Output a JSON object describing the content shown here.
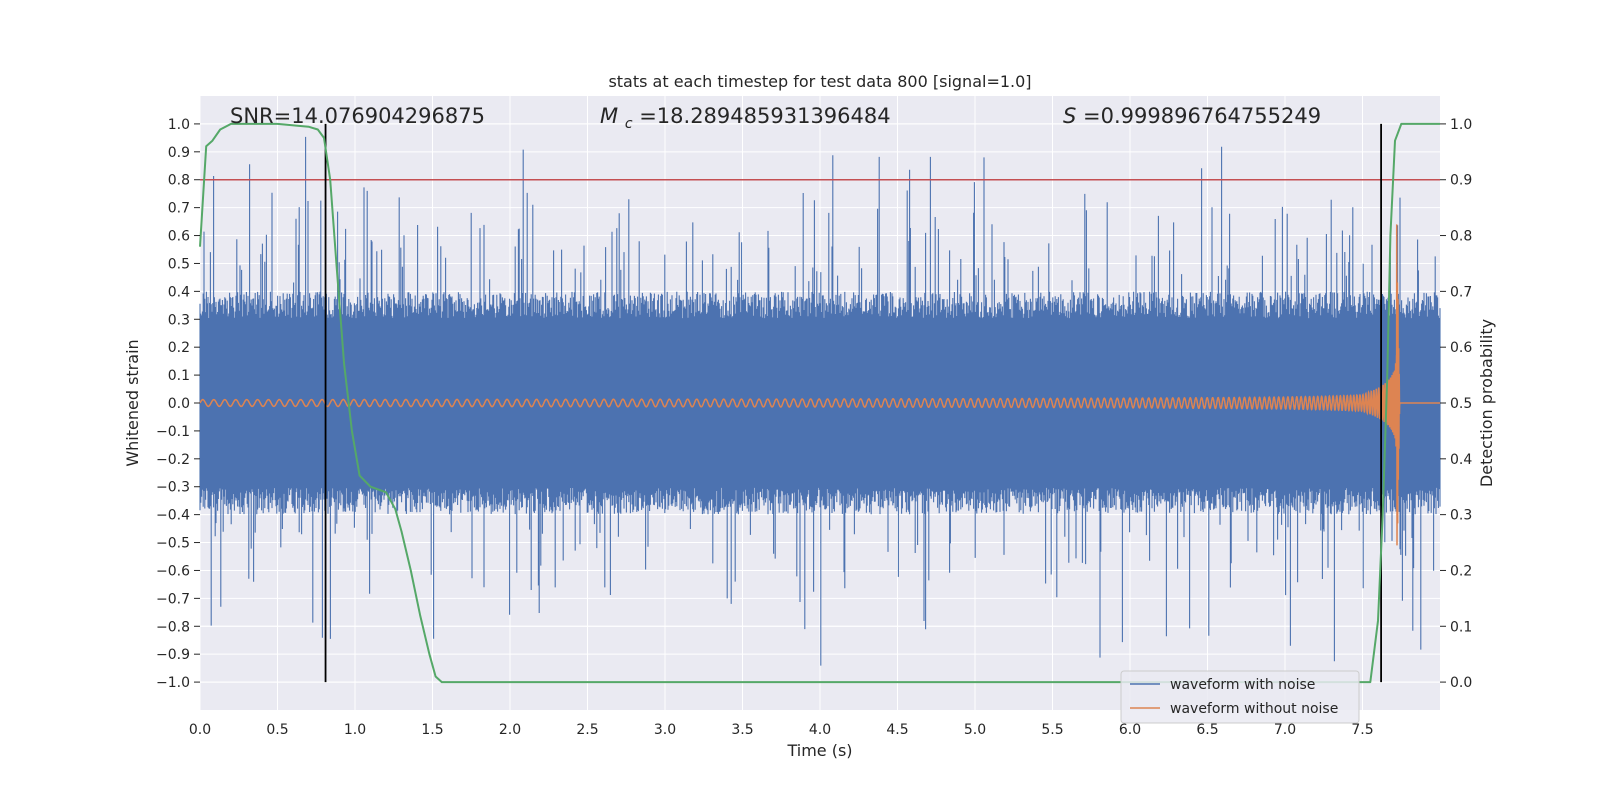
{
  "chart_data": {
    "type": "line",
    "title": "stats at each timestep for test data 800 [signal=1.0]",
    "xlabel": "Time (s)",
    "ylabel": "Whitened strain",
    "y2label": "Detection probability",
    "xlim": [
      0.0,
      8.0
    ],
    "ylim": [
      -1.1,
      1.1
    ],
    "y2lim": [
      -0.05,
      1.05
    ],
    "xticks": [
      0.0,
      0.5,
      1.0,
      1.5,
      2.0,
      2.5,
      3.0,
      3.5,
      4.0,
      4.5,
      5.0,
      5.5,
      6.0,
      6.5,
      7.0,
      7.5
    ],
    "xtick_labels": [
      "0.0",
      "0.5",
      "1.0",
      "1.5",
      "2.0",
      "2.5",
      "3.0",
      "3.5",
      "4.0",
      "4.5",
      "5.0",
      "5.5",
      "6.0",
      "6.5",
      "7.0",
      "7.5"
    ],
    "yticks": [
      1.0,
      0.9,
      0.8,
      0.7,
      0.6,
      0.5,
      0.4,
      0.3,
      0.2,
      0.1,
      0.0,
      -0.1,
      -0.2,
      -0.3,
      -0.4,
      -0.5,
      -0.6,
      -0.7,
      -0.8,
      -0.9,
      -1.0
    ],
    "ytick_labels": [
      "1.0",
      "0.9",
      "0.8",
      "0.7",
      "0.6",
      "0.5",
      "0.4",
      "0.3",
      "0.2",
      "0.1",
      "0.0",
      "−0.1",
      "−0.2",
      "−0.3",
      "−0.4",
      "−0.5",
      "−0.6",
      "−0.7",
      "−0.8",
      "−0.9",
      "−1.0"
    ],
    "y2ticks": [
      1.0,
      0.9,
      0.8,
      0.7,
      0.6,
      0.5,
      0.4,
      0.3,
      0.2,
      0.1,
      0.0
    ],
    "y2tick_labels": [
      "1.0",
      "0.9",
      "0.8",
      "0.7",
      "0.6",
      "0.5",
      "0.4",
      "0.3",
      "0.2",
      "0.1",
      "0.0"
    ],
    "annotations": {
      "snr": "SNR=14.076904296875",
      "mc_symbol": "M",
      "mc_sub": "c",
      "mc_value": "=18.289485931396484",
      "s_symbol": "S",
      "s_value": "=0.999896764755249"
    },
    "threshold_line": {
      "value": 0.9,
      "axis": "y2",
      "color": "#c44e52"
    },
    "vertical_lines": [
      0.81,
      7.62
    ],
    "noise_series": {
      "name": "waveform with noise",
      "color": "#4c72b0",
      "typical_amplitude": 0.38,
      "peak_range": [
        -1.0,
        0.99
      ],
      "seed": 800
    },
    "signal_series": {
      "name": "waveform without noise",
      "color": "#dd8452",
      "start_amplitude": 0.012,
      "peak_amplitude": 0.68,
      "start_frequency_hz": 14,
      "merger_time": 7.72,
      "ringdown_end": 7.74
    },
    "probability_series": {
      "name": "detection probability",
      "color": "#55a868",
      "x": [
        0.0,
        0.04,
        0.08,
        0.13,
        0.2,
        0.3,
        0.5,
        0.7,
        0.76,
        0.8,
        0.84,
        0.88,
        0.93,
        0.98,
        1.03,
        1.1,
        1.2,
        1.26,
        1.3,
        1.36,
        1.42,
        1.48,
        1.52,
        1.56,
        1.6,
        2.0,
        3.0,
        4.0,
        5.0,
        6.0,
        7.0,
        7.55,
        7.6,
        7.63,
        7.66,
        7.68,
        7.71,
        7.75,
        7.85,
        8.0
      ],
      "y": [
        0.78,
        0.96,
        0.97,
        0.99,
        1.0,
        1.0,
        1.0,
        0.995,
        0.99,
        0.975,
        0.9,
        0.75,
        0.57,
        0.45,
        0.37,
        0.35,
        0.34,
        0.31,
        0.27,
        0.2,
        0.12,
        0.05,
        0.01,
        0.0,
        0.0,
        0.0,
        0.0,
        0.0,
        0.0,
        0.0,
        0.0,
        0.0,
        0.11,
        0.3,
        0.55,
        0.8,
        0.97,
        1.0,
        1.0,
        1.0
      ]
    },
    "legend": {
      "position": "lower-right",
      "entries": [
        {
          "label": "waveform with noise",
          "color": "#4c72b0"
        },
        {
          "label": "waveform without noise",
          "color": "#dd8452"
        }
      ]
    },
    "colors": {
      "plot_background": "#eaeaf2",
      "grid": "#ffffff",
      "vertical_line": "#000000"
    }
  }
}
